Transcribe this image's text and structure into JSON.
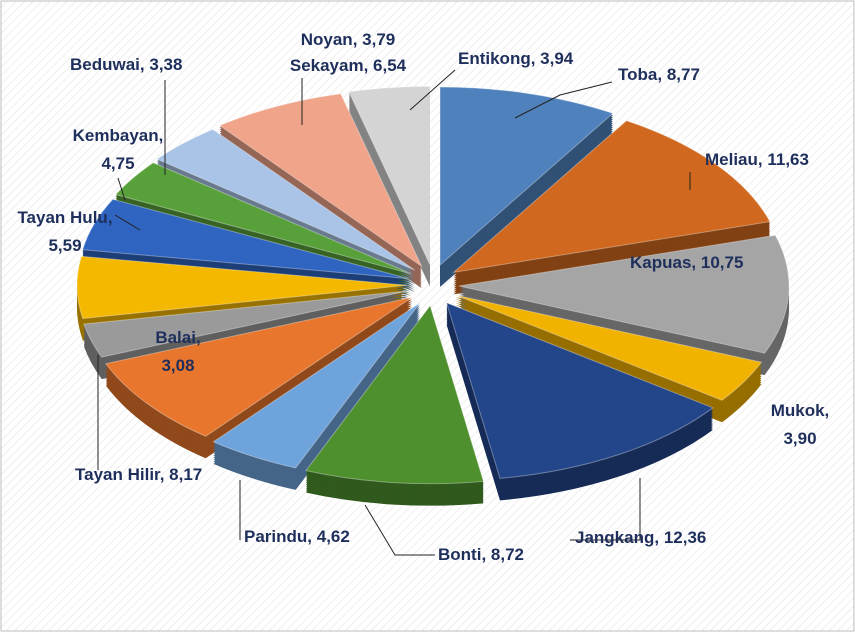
{
  "chart_data": {
    "type": "pie",
    "categories": [
      "Toba",
      "Meliau",
      "Kapuas",
      "Mukok",
      "Jangkang",
      "Bonti",
      "Parindu",
      "Tayan Hilir",
      "Balai",
      "Tayan Hulu",
      "Kembayan",
      "Beduwai",
      "Noyan",
      "Sekayam",
      "Entikong"
    ],
    "values": [
      8.77,
      11.63,
      10.75,
      3.9,
      12.36,
      8.72,
      4.62,
      8.17,
      3.08,
      5.59,
      4.75,
      3.38,
      3.79,
      6.54,
      3.94
    ],
    "value_labels": [
      "8,77",
      "11,63",
      "10,75",
      "3,90",
      "12,36",
      "8,72",
      "4,62",
      "8,17",
      "3,08",
      "5,59",
      "4,75",
      "3,38",
      "3,79",
      "6,54",
      "3,94"
    ],
    "colors": [
      "#4f81bd",
      "#d0691f",
      "#a5a5a5",
      "#f2b200",
      "#23468a",
      "#4e8f2e",
      "#6fa3dc",
      "#e8762c",
      "#9a9a9a",
      "#f5b800",
      "#2f64c0",
      "#58a03a",
      "#a9c4e6",
      "#f0a48a",
      "#d4d4d4"
    ]
  }
}
